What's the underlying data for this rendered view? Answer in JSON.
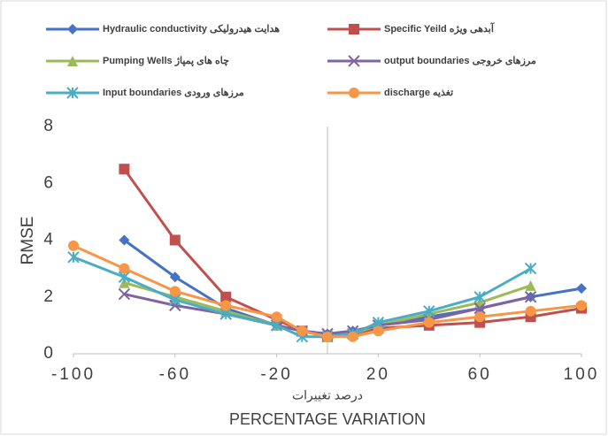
{
  "chart_data": {
    "type": "line",
    "x": [
      -100,
      -80,
      -60,
      -40,
      -20,
      -10,
      0,
      10,
      20,
      40,
      60,
      80,
      100
    ],
    "series": [
      {
        "name": "Hydraulic conductivity هدایت هیدرولیکی",
        "color": "#4472c4",
        "marker": "diamond",
        "values": [
          null,
          4.0,
          2.7,
          1.6,
          1.0,
          0.8,
          0.7,
          0.8,
          1.0,
          1.3,
          1.6,
          2.0,
          2.3
        ]
      },
      {
        "name": "Specific Yeild آبدهی ویژه",
        "color": "#c0504d",
        "marker": "square",
        "values": [
          null,
          6.5,
          4.0,
          2.0,
          1.2,
          0.8,
          0.6,
          0.7,
          0.9,
          1.0,
          1.1,
          1.3,
          1.6
        ]
      },
      {
        "name": "Pumping Wells چاه های پمپاژ",
        "color": "#9bbb59",
        "marker": "triangle",
        "values": [
          null,
          2.5,
          2.0,
          1.5,
          1.0,
          0.8,
          0.6,
          0.7,
          1.0,
          1.4,
          1.8,
          2.4,
          null
        ]
      },
      {
        "name": "output boundaries مرزهای خروجی",
        "color": "#8064a2",
        "marker": "x",
        "values": [
          null,
          2.1,
          1.7,
          1.4,
          1.0,
          0.8,
          0.7,
          0.8,
          1.0,
          1.2,
          1.6,
          2.0,
          null
        ]
      },
      {
        "name": "Input boundaries مرزهای ورودی",
        "color": "#4bacc6",
        "marker": "star",
        "values": [
          3.4,
          2.7,
          1.9,
          1.4,
          1.0,
          0.6,
          0.6,
          0.7,
          1.1,
          1.5,
          2.0,
          3.0,
          null
        ]
      },
      {
        "name": "discharge تغذیه",
        "color": "#f79646",
        "marker": "circle",
        "values": [
          3.8,
          3.0,
          2.2,
          1.7,
          1.3,
          0.8,
          0.6,
          0.6,
          0.8,
          1.1,
          1.3,
          1.5,
          1.7
        ]
      }
    ],
    "xlim": [
      -100,
      100
    ],
    "xticks": [
      -100,
      -60,
      -20,
      20,
      60,
      100
    ],
    "ylim": [
      0,
      8
    ],
    "yticks": [
      0,
      2,
      4,
      6,
      8
    ],
    "ylabel": "RMSE",
    "xlabel_fa": "درصد تغییرات",
    "xlabel": "PERCENTAGE VARIATION",
    "grid": false,
    "legend": "top"
  }
}
